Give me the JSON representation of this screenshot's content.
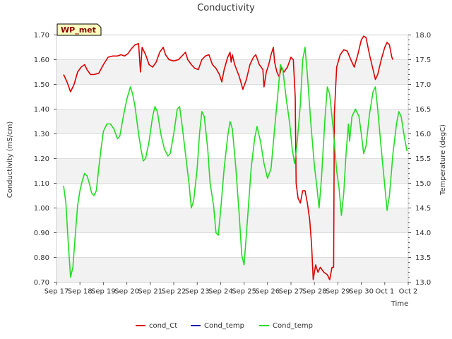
{
  "chart_data": {
    "type": "line",
    "title": "Conductivity",
    "badge": "WP_met",
    "xlabel": "Time",
    "ylabel_left": "Conductivity (mS/cm)",
    "ylabel_right": "Temperature (degC)",
    "x_ticks": [
      "Sep 17",
      "Sep 18",
      "Sep 19",
      "Sep 20",
      "Sep 21",
      "Sep 22",
      "Sep 23",
      "Sep 24",
      "Sep 25",
      "Sep 26",
      "Sep 27",
      "Sep 28",
      "Sep 29",
      "Sep 30",
      "Oct 1",
      "Oct 2"
    ],
    "x_range": [
      0,
      15
    ],
    "ylim_left": [
      0.7,
      1.7
    ],
    "y_ticks_left": [
      "0.70",
      "0.80",
      "0.90",
      "1.00",
      "1.10",
      "1.20",
      "1.30",
      "1.40",
      "1.50",
      "1.60",
      "1.70"
    ],
    "ylim_right": [
      13.0,
      18.0
    ],
    "y_ticks_right": [
      "13.0",
      "13.5",
      "14.0",
      "14.5",
      "15.0",
      "15.5",
      "16.0",
      "16.5",
      "17.0",
      "17.5",
      "18.0"
    ],
    "grid": "horizontal bands",
    "legend": [
      "cond_Ct",
      "Cond_temp",
      "Cond_temp"
    ],
    "legend_position": "bottom",
    "series": [
      {
        "name": "cond_Ct",
        "axis": "left",
        "color": "#dd0000",
        "points": [
          [
            0.3,
            1.54
          ],
          [
            0.45,
            1.51
          ],
          [
            0.6,
            1.47
          ],
          [
            0.75,
            1.5
          ],
          [
            0.9,
            1.55
          ],
          [
            1.05,
            1.57
          ],
          [
            1.2,
            1.58
          ],
          [
            1.3,
            1.56
          ],
          [
            1.45,
            1.54
          ],
          [
            1.6,
            1.54
          ],
          [
            1.8,
            1.545
          ],
          [
            2.0,
            1.58
          ],
          [
            2.2,
            1.61
          ],
          [
            2.4,
            1.615
          ],
          [
            2.6,
            1.615
          ],
          [
            2.75,
            1.62
          ],
          [
            2.9,
            1.615
          ],
          [
            3.05,
            1.625
          ],
          [
            3.2,
            1.645
          ],
          [
            3.35,
            1.66
          ],
          [
            3.5,
            1.665
          ],
          [
            3.58,
            1.55
          ],
          [
            3.65,
            1.65
          ],
          [
            3.8,
            1.62
          ],
          [
            3.95,
            1.58
          ],
          [
            4.1,
            1.57
          ],
          [
            4.25,
            1.59
          ],
          [
            4.4,
            1.63
          ],
          [
            4.55,
            1.65
          ],
          [
            4.65,
            1.62
          ],
          [
            4.8,
            1.6
          ],
          [
            5.0,
            1.595
          ],
          [
            5.2,
            1.6
          ],
          [
            5.35,
            1.615
          ],
          [
            5.5,
            1.63
          ],
          [
            5.6,
            1.6
          ],
          [
            5.75,
            1.58
          ],
          [
            5.9,
            1.565
          ],
          [
            6.05,
            1.56
          ],
          [
            6.2,
            1.6
          ],
          [
            6.35,
            1.615
          ],
          [
            6.5,
            1.62
          ],
          [
            6.65,
            1.58
          ],
          [
            6.8,
            1.565
          ],
          [
            6.95,
            1.54
          ],
          [
            7.05,
            1.51
          ],
          [
            7.15,
            1.56
          ],
          [
            7.3,
            1.61
          ],
          [
            7.4,
            1.63
          ],
          [
            7.45,
            1.59
          ],
          [
            7.5,
            1.62
          ],
          [
            7.6,
            1.58
          ],
          [
            7.8,
            1.53
          ],
          [
            7.95,
            1.48
          ],
          [
            8.1,
            1.52
          ],
          [
            8.25,
            1.58
          ],
          [
            8.4,
            1.61
          ],
          [
            8.5,
            1.62
          ],
          [
            8.65,
            1.58
          ],
          [
            8.8,
            1.56
          ],
          [
            8.85,
            1.49
          ],
          [
            8.95,
            1.55
          ],
          [
            9.05,
            1.58
          ],
          [
            9.15,
            1.62
          ],
          [
            9.25,
            1.65
          ],
          [
            9.3,
            1.59
          ],
          [
            9.4,
            1.55
          ],
          [
            9.5,
            1.53
          ],
          [
            9.6,
            1.57
          ],
          [
            9.7,
            1.55
          ],
          [
            9.85,
            1.57
          ],
          [
            10.0,
            1.61
          ],
          [
            10.1,
            1.6
          ],
          [
            10.18,
            1.45
          ],
          [
            10.22,
            1.1
          ],
          [
            10.3,
            1.04
          ],
          [
            10.4,
            1.02
          ],
          [
            10.5,
            1.07
          ],
          [
            10.6,
            1.07
          ],
          [
            10.7,
            1.02
          ],
          [
            10.8,
            0.95
          ],
          [
            10.88,
            0.85
          ],
          [
            10.95,
            0.71
          ],
          [
            11.05,
            0.77
          ],
          [
            11.15,
            0.74
          ],
          [
            11.25,
            0.76
          ],
          [
            11.4,
            0.74
          ],
          [
            11.55,
            0.73
          ],
          [
            11.65,
            0.71
          ],
          [
            11.75,
            0.76
          ],
          [
            11.82,
            0.76
          ],
          [
            11.85,
            1.38
          ],
          [
            11.95,
            1.57
          ],
          [
            12.1,
            1.62
          ],
          [
            12.25,
            1.64
          ],
          [
            12.4,
            1.635
          ],
          [
            12.55,
            1.6
          ],
          [
            12.7,
            1.57
          ],
          [
            12.85,
            1.62
          ],
          [
            13.0,
            1.68
          ],
          [
            13.1,
            1.695
          ],
          [
            13.2,
            1.69
          ],
          [
            13.35,
            1.62
          ],
          [
            13.5,
            1.56
          ],
          [
            13.6,
            1.52
          ],
          [
            13.7,
            1.54
          ],
          [
            13.85,
            1.6
          ],
          [
            14.0,
            1.65
          ],
          [
            14.1,
            1.67
          ],
          [
            14.2,
            1.66
          ],
          [
            14.3,
            1.61
          ],
          [
            14.35,
            1.6
          ]
        ]
      },
      {
        "name": "Cond_temp",
        "axis": "right",
        "color": "#0000aa",
        "points": []
      },
      {
        "name": "Cond_temp",
        "axis": "right",
        "color": "#22dd22",
        "points": [
          [
            0.3,
            14.95
          ],
          [
            0.4,
            14.6
          ],
          [
            0.5,
            13.8
          ],
          [
            0.6,
            13.1
          ],
          [
            0.7,
            13.3
          ],
          [
            0.8,
            13.95
          ],
          [
            0.9,
            14.55
          ],
          [
            1.0,
            14.85
          ],
          [
            1.1,
            15.05
          ],
          [
            1.2,
            15.2
          ],
          [
            1.3,
            15.15
          ],
          [
            1.4,
            15.0
          ],
          [
            1.5,
            14.8
          ],
          [
            1.6,
            14.75
          ],
          [
            1.7,
            14.85
          ],
          [
            1.8,
            15.3
          ],
          [
            1.9,
            15.7
          ],
          [
            2.0,
            16.05
          ],
          [
            2.15,
            16.2
          ],
          [
            2.3,
            16.2
          ],
          [
            2.45,
            16.1
          ],
          [
            2.6,
            15.9
          ],
          [
            2.7,
            15.95
          ],
          [
            2.85,
            16.35
          ],
          [
            3.0,
            16.7
          ],
          [
            3.15,
            16.95
          ],
          [
            3.25,
            16.8
          ],
          [
            3.35,
            16.55
          ],
          [
            3.5,
            16.0
          ],
          [
            3.6,
            15.7
          ],
          [
            3.7,
            15.45
          ],
          [
            3.8,
            15.5
          ],
          [
            3.95,
            15.85
          ],
          [
            4.1,
            16.35
          ],
          [
            4.2,
            16.55
          ],
          [
            4.3,
            16.45
          ],
          [
            4.45,
            16.0
          ],
          [
            4.6,
            15.7
          ],
          [
            4.75,
            15.55
          ],
          [
            4.85,
            15.6
          ],
          [
            5.0,
            16.0
          ],
          [
            5.15,
            16.5
          ],
          [
            5.25,
            16.55
          ],
          [
            5.35,
            16.2
          ],
          [
            5.5,
            15.6
          ],
          [
            5.65,
            15.0
          ],
          [
            5.75,
            14.5
          ],
          [
            5.85,
            14.65
          ],
          [
            6.0,
            15.3
          ],
          [
            6.1,
            16.0
          ],
          [
            6.2,
            16.45
          ],
          [
            6.3,
            16.35
          ],
          [
            6.45,
            15.7
          ],
          [
            6.55,
            15.0
          ],
          [
            6.7,
            14.55
          ],
          [
            6.8,
            14.0
          ],
          [
            6.9,
            13.95
          ],
          [
            7.0,
            14.45
          ],
          [
            7.15,
            15.3
          ],
          [
            7.3,
            15.95
          ],
          [
            7.4,
            16.25
          ],
          [
            7.5,
            16.1
          ],
          [
            7.65,
            15.3
          ],
          [
            7.8,
            14.3
          ],
          [
            7.9,
            13.55
          ],
          [
            8.0,
            13.35
          ],
          [
            8.15,
            14.3
          ],
          [
            8.3,
            15.3
          ],
          [
            8.45,
            15.9
          ],
          [
            8.55,
            16.15
          ],
          [
            8.7,
            15.85
          ],
          [
            8.85,
            15.4
          ],
          [
            9.0,
            15.1
          ],
          [
            9.15,
            15.3
          ],
          [
            9.3,
            16.1
          ],
          [
            9.45,
            16.85
          ],
          [
            9.55,
            17.4
          ],
          [
            9.65,
            17.3
          ],
          [
            9.8,
            16.7
          ],
          [
            9.95,
            16.2
          ],
          [
            10.05,
            15.7
          ],
          [
            10.15,
            15.4
          ],
          [
            10.25,
            15.75
          ],
          [
            10.4,
            16.6
          ],
          [
            10.5,
            17.5
          ],
          [
            10.6,
            17.75
          ],
          [
            10.7,
            17.2
          ],
          [
            10.85,
            16.2
          ],
          [
            11.0,
            15.35
          ],
          [
            11.1,
            14.95
          ],
          [
            11.2,
            14.5
          ],
          [
            11.3,
            15.1
          ],
          [
            11.45,
            16.3
          ],
          [
            11.55,
            16.95
          ],
          [
            11.65,
            16.8
          ],
          [
            11.8,
            16.1
          ],
          [
            11.95,
            15.25
          ],
          [
            12.05,
            14.9
          ],
          [
            12.15,
            14.35
          ],
          [
            12.25,
            14.8
          ],
          [
            12.35,
            15.6
          ],
          [
            12.45,
            16.2
          ],
          [
            12.5,
            15.85
          ],
          [
            12.6,
            16.35
          ],
          [
            12.75,
            16.5
          ],
          [
            12.9,
            16.35
          ],
          [
            13.0,
            16.0
          ],
          [
            13.1,
            15.6
          ],
          [
            13.2,
            15.75
          ],
          [
            13.35,
            16.4
          ],
          [
            13.5,
            16.85
          ],
          [
            13.6,
            16.95
          ],
          [
            13.7,
            16.5
          ],
          [
            13.85,
            15.7
          ],
          [
            14.0,
            14.95
          ],
          [
            14.1,
            14.45
          ],
          [
            14.2,
            14.75
          ],
          [
            14.35,
            15.6
          ],
          [
            14.5,
            16.2
          ],
          [
            14.6,
            16.45
          ],
          [
            14.7,
            16.35
          ],
          [
            14.85,
            15.9
          ],
          [
            14.95,
            15.65
          ]
        ]
      }
    ]
  }
}
